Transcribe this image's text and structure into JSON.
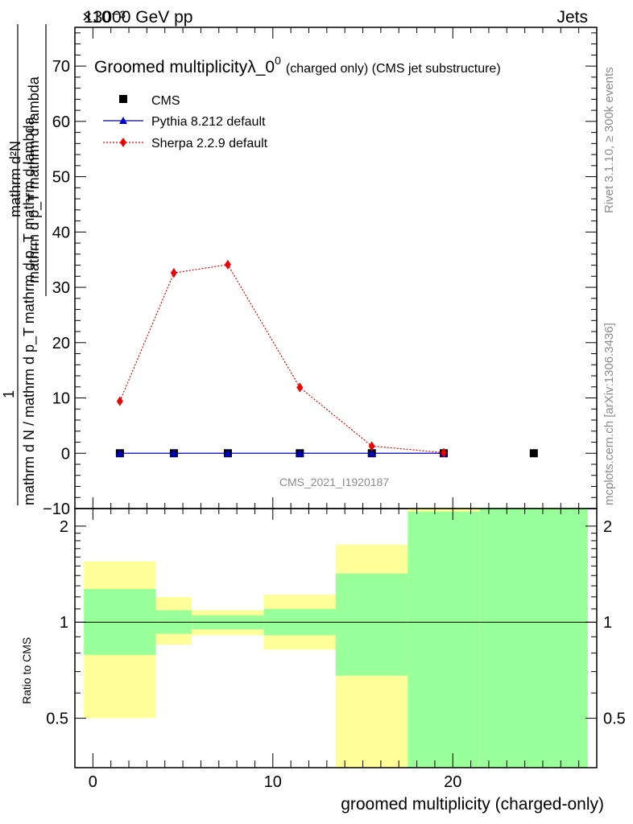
{
  "header": {
    "energy_label": "13000 GeV pp",
    "category": "Jets",
    "exponent_label": "×10⁻³"
  },
  "side_text": {
    "rivet": "Rivet 3.1.10, ≥ 300k events",
    "mcplots": "mcplots.cern.ch [arXiv:1306.3436]"
  },
  "chart_data": [
    {
      "type": "scatter",
      "title_main": "Groomed multiplicityλ_0",
      "title_sup": "0",
      "title_sub": "(charged only) (CMS jet substructure)",
      "watermark": "CMS_2021_I1920187",
      "ylabel_top": "mathrm d²N",
      "ylabel_bottom": "mathrm d p_T mathrm d lambda",
      "ylabel_one": "1",
      "ylabel_den": "mathrm d N / mathrm d p_T mathrm d p_T mathrm d lambda",
      "xlim": [
        -1,
        28
      ],
      "ylim": [
        -10,
        77
      ],
      "y_ticks": [
        -10,
        0,
        10,
        20,
        30,
        40,
        50,
        60,
        70
      ],
      "y_tick_labels": [
        "−10",
        "0",
        "10",
        "20",
        "30",
        "40",
        "50",
        "60",
        "70"
      ],
      "legend": [
        "CMS",
        "Pythia 8.212 default",
        "Sherpa 2.2.9 default"
      ],
      "series": [
        {
          "name": "CMS",
          "color": "#000000",
          "marker": "square",
          "x": [
            1.5,
            4.5,
            7.5,
            11.5,
            15.5,
            19.5,
            24.5
          ],
          "y": [
            0,
            0,
            0,
            0,
            0,
            0,
            0
          ]
        },
        {
          "name": "Pythia 8.212 default",
          "color": "#0000cc",
          "marker": "triangle",
          "x": [
            1.5,
            4.5,
            7.5,
            11.5,
            15.5,
            19.5
          ],
          "y": [
            0,
            0,
            0,
            0,
            0,
            0
          ]
        },
        {
          "name": "Sherpa 2.2.9 default",
          "color": "#ee0000",
          "marker": "diamond",
          "x": [
            1.5,
            4.5,
            7.5,
            11.5,
            15.5,
            19.5
          ],
          "y": [
            9.4,
            32.6,
            34.1,
            11.9,
            1.3,
            0.1
          ],
          "err": [
            0,
            0.8,
            0.6,
            0,
            0,
            0
          ]
        }
      ]
    },
    {
      "type": "area",
      "ylabel": "Ratio to CMS",
      "xlabel": "groomed multiplicity (charged-only)",
      "xlim": [
        -1,
        28
      ],
      "ylim": [
        0.35,
        2.27
      ],
      "y_ticks": [
        0.5,
        1,
        2
      ],
      "y_tick_labels": [
        "0.5",
        "1",
        "2"
      ],
      "minor_y_ticks": [
        0.6,
        0.7,
        0.8,
        0.9,
        1.1,
        1.2,
        1.3,
        1.4,
        1.5,
        1.6,
        1.7,
        1.8,
        1.9
      ],
      "x_ticks": [
        0,
        10,
        20
      ],
      "x_tick_labels": [
        "0",
        "10",
        "20"
      ],
      "reference_line": 1,
      "bands": [
        {
          "x0": -0.5,
          "x1": 3.5,
          "yellow": [
            0.5,
            1.55
          ],
          "green": [
            0.79,
            1.27
          ]
        },
        {
          "x0": 3.5,
          "x1": 5.5,
          "yellow": [
            0.85,
            1.2
          ],
          "green": [
            0.92,
            1.09
          ]
        },
        {
          "x0": 5.5,
          "x1": 9.5,
          "yellow": [
            0.91,
            1.09
          ],
          "green": [
            0.95,
            1.05
          ]
        },
        {
          "x0": 9.5,
          "x1": 13.5,
          "yellow": [
            0.82,
            1.22
          ],
          "green": [
            0.91,
            1.1
          ]
        },
        {
          "x0": 13.5,
          "x1": 17.5,
          "yellow": [
            0.35,
            1.75
          ],
          "green": [
            0.68,
            1.42
          ]
        },
        {
          "x0": 17.5,
          "x1": 21.5,
          "yellow": [
            0.35,
            2.27
          ],
          "green": [
            0.35,
            2.22
          ]
        },
        {
          "x0": 21.5,
          "x1": 27.5,
          "yellow": [
            0.35,
            2.27
          ],
          "green": [
            0.35,
            2.27
          ]
        }
      ]
    }
  ]
}
